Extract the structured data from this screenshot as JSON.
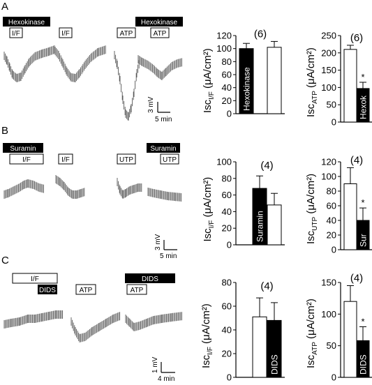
{
  "panels": [
    {
      "letter": "A",
      "protocol": {
        "bar1": "Hexokinase",
        "box1": "I/F",
        "box2": "I/F",
        "box3": "ATP",
        "bar2": "Hexokinase",
        "box4": "ATP"
      },
      "scale": {
        "v": "3 mV",
        "t": "5 min"
      }
    },
    {
      "letter": "B",
      "protocol": {
        "bar1": "Suramin",
        "box1": "I/F",
        "box2": "I/F",
        "box3": "UTP",
        "bar2": "Suramin",
        "box4": "UTP"
      },
      "scale": {
        "v": "3 mV",
        "t": "5 min"
      }
    },
    {
      "letter": "C",
      "protocol": {
        "box1": "I/F",
        "bar1": "DIDS",
        "box2": "ATP",
        "bar2": "DIDS",
        "box3": "ATP"
      },
      "scale": {
        "v": "1 mV",
        "t": "4 min"
      }
    }
  ],
  "chart_data": [
    {
      "type": "bar",
      "panel": "A-left",
      "ylabel_main": "Isc",
      "ylabel_sub": "I/F",
      "ylabel_unit": "(μA/cm²)",
      "ylim": [
        0,
        120
      ],
      "yticks": [
        0,
        20,
        40,
        60,
        80,
        100,
        120
      ],
      "n_label": "(6)",
      "bars": [
        {
          "value": 100,
          "error": 8,
          "fill": "black",
          "label": "Hexokinase"
        },
        {
          "value": 102,
          "error": 9,
          "fill": "white",
          "label": ""
        }
      ],
      "significance": ""
    },
    {
      "type": "bar",
      "panel": "A-right",
      "ylabel_main": "Isc",
      "ylabel_sub": "ATP",
      "ylabel_unit": "(μA/cm²)",
      "ylim": [
        0,
        250
      ],
      "yticks": [
        0,
        50,
        100,
        150,
        200,
        250
      ],
      "n_label": "(6)",
      "bars": [
        {
          "value": 210,
          "error": 12,
          "fill": "white",
          "label": ""
        },
        {
          "value": 97,
          "error": 18,
          "fill": "black",
          "label": "Hexok"
        }
      ],
      "significance": "*"
    },
    {
      "type": "bar",
      "panel": "B-left",
      "ylabel_main": "Isc",
      "ylabel_sub": "I/F",
      "ylabel_unit": "(μA/cm²)",
      "ylim": [
        0,
        100
      ],
      "yticks": [
        0,
        20,
        40,
        60,
        80,
        100
      ],
      "n_label": "(4)",
      "bars": [
        {
          "value": 68,
          "error": 15,
          "fill": "black",
          "label": "Suramin"
        },
        {
          "value": 48,
          "error": 14,
          "fill": "white",
          "label": ""
        }
      ],
      "significance": ""
    },
    {
      "type": "bar",
      "panel": "B-right",
      "ylabel_main": "Isc",
      "ylabel_sub": "UTP",
      "ylabel_unit": "(μA/cm²)",
      "ylim": [
        0,
        120
      ],
      "yticks": [
        0,
        20,
        40,
        60,
        80,
        100,
        120
      ],
      "n_label": "(4)",
      "bars": [
        {
          "value": 90,
          "error": 22,
          "fill": "white",
          "label": ""
        },
        {
          "value": 40,
          "error": 17,
          "fill": "black",
          "label": "Sur"
        }
      ],
      "significance": "*"
    },
    {
      "type": "bar",
      "panel": "C-left",
      "ylabel_main": "Isc",
      "ylabel_sub": "I/F",
      "ylabel_unit": "(μA/cm²)",
      "ylim": [
        0,
        80
      ],
      "yticks": [
        0,
        20,
        40,
        60,
        80
      ],
      "n_label": "(4)",
      "bars": [
        {
          "value": 51,
          "error": 16,
          "fill": "white",
          "label": ""
        },
        {
          "value": 48,
          "error": 15,
          "fill": "black",
          "label": "DIDS"
        }
      ],
      "significance": ""
    },
    {
      "type": "bar",
      "panel": "C-right",
      "ylabel_main": "Isc",
      "ylabel_sub": "ATP",
      "ylabel_unit": "(μA/cm²)",
      "ylim": [
        0,
        150
      ],
      "yticks": [
        0,
        50,
        100,
        150
      ],
      "n_label": "(4)",
      "bars": [
        {
          "value": 120,
          "error": 25,
          "fill": "white",
          "label": ""
        },
        {
          "value": 58,
          "error": 22,
          "fill": "black",
          "label": "DIDS"
        }
      ],
      "significance": "*"
    }
  ]
}
